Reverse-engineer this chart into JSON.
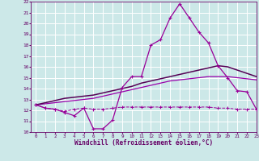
{
  "xlabel": "Windchill (Refroidissement éolien,°C)",
  "x_values": [
    0,
    1,
    2,
    3,
    4,
    5,
    6,
    7,
    8,
    9,
    10,
    11,
    12,
    13,
    14,
    15,
    16,
    17,
    18,
    19,
    20,
    21,
    22,
    23
  ],
  "line1_y": [
    12.5,
    12.2,
    12.1,
    11.8,
    11.5,
    12.2,
    10.3,
    10.3,
    11.1,
    14.1,
    15.1,
    15.1,
    18.0,
    18.5,
    20.5,
    21.8,
    20.5,
    19.2,
    18.2,
    16.1,
    15.0,
    13.8,
    13.7,
    12.1
  ],
  "line2_y": [
    12.5,
    12.2,
    12.1,
    11.9,
    12.1,
    12.2,
    12.1,
    12.1,
    12.2,
    12.3,
    12.3,
    12.3,
    12.3,
    12.3,
    12.3,
    12.3,
    12.3,
    12.3,
    12.3,
    12.2,
    12.2,
    12.1,
    12.1,
    12.1
  ],
  "line3_y": [
    12.5,
    12.6,
    12.7,
    12.8,
    12.9,
    13.0,
    13.1,
    13.3,
    13.5,
    13.7,
    13.9,
    14.1,
    14.3,
    14.5,
    14.7,
    14.8,
    14.9,
    15.0,
    15.1,
    15.1,
    15.1,
    15.0,
    14.9,
    14.8
  ],
  "line4_y": [
    12.5,
    12.7,
    12.9,
    13.1,
    13.2,
    13.3,
    13.4,
    13.6,
    13.8,
    14.0,
    14.2,
    14.5,
    14.7,
    14.9,
    15.1,
    15.3,
    15.5,
    15.7,
    15.9,
    16.1,
    16.0,
    15.7,
    15.4,
    15.1
  ],
  "line_color1": "#990099",
  "line_color2": "#990099",
  "line_color3": "#9900aa",
  "line_color4": "#550055",
  "bg_color": "#cce8e8",
  "grid_color": "#aadddd",
  "tick_color": "#660066",
  "label_color": "#660066",
  "ylim": [
    10,
    22
  ],
  "xlim": [
    -0.5,
    23
  ],
  "yticks": [
    10,
    11,
    12,
    13,
    14,
    15,
    16,
    17,
    18,
    19,
    20,
    21,
    22
  ],
  "xticks": [
    0,
    1,
    2,
    3,
    4,
    5,
    6,
    7,
    8,
    9,
    10,
    11,
    12,
    13,
    14,
    15,
    16,
    17,
    18,
    19,
    20,
    21,
    22,
    23
  ]
}
